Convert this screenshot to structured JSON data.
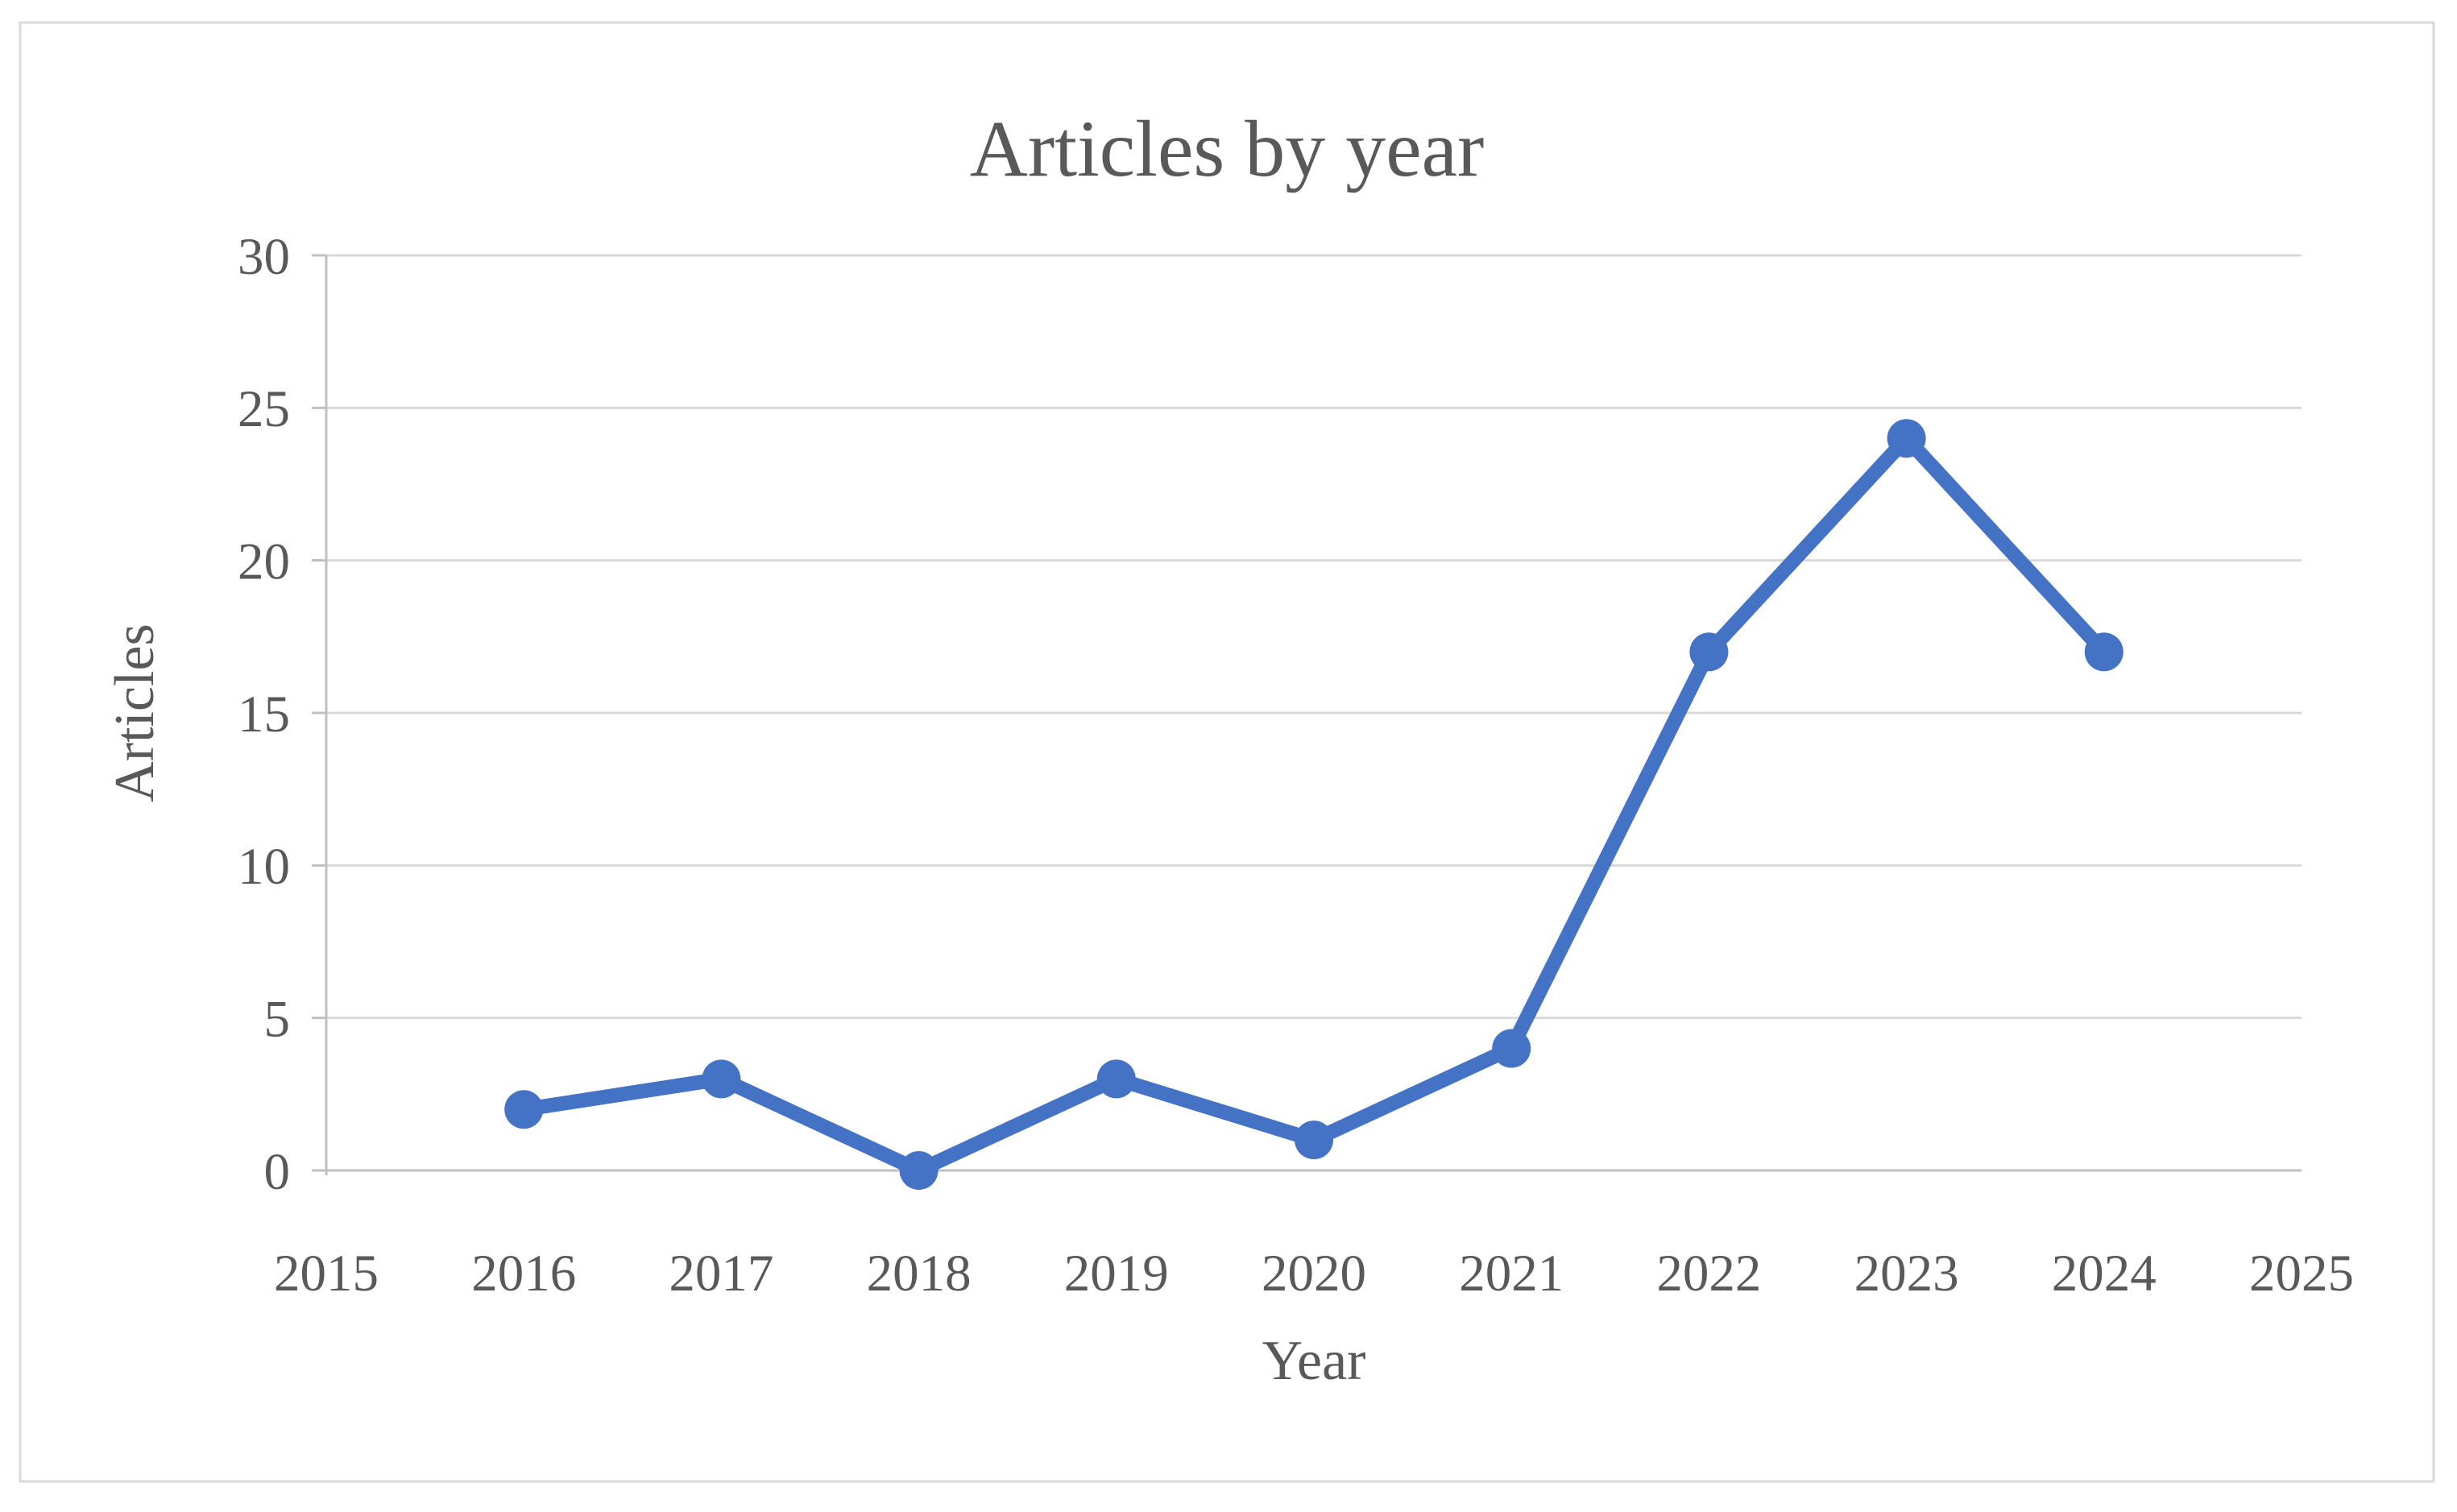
{
  "figure": {
    "border_color": "#d9d9d9",
    "background": "#ffffff"
  },
  "chart_data": {
    "type": "line",
    "title": "Articles by year",
    "xlabel": "Year",
    "ylabel": "Articles",
    "x": [
      2016,
      2017,
      2018,
      2019,
      2020,
      2021,
      2022,
      2023,
      2024
    ],
    "values": [
      2,
      3,
      0,
      3,
      1,
      4,
      17,
      24,
      17
    ],
    "series": [
      {
        "name": "Articles",
        "values": [
          2,
          3,
          0,
          3,
          1,
          4,
          17,
          24,
          17
        ]
      }
    ],
    "x_tick_labels": [
      "2015",
      "2016",
      "2017",
      "2018",
      "2019",
      "2020",
      "2021",
      "2022",
      "2023",
      "2024",
      "2025"
    ],
    "x_tick_values": [
      2015,
      2016,
      2017,
      2018,
      2019,
      2020,
      2021,
      2022,
      2023,
      2024,
      2025
    ],
    "y_tick_labels": [
      "0",
      "5",
      "10",
      "15",
      "20",
      "25",
      "30"
    ],
    "y_tick_values": [
      0,
      5,
      10,
      15,
      20,
      25,
      30
    ],
    "xlim": [
      2015,
      2025
    ],
    "ylim": [
      0,
      30
    ],
    "grid": "horizontal-only",
    "legend_position": "none",
    "colors": {
      "line": "#4472C4",
      "marker": "#4472C4",
      "gridline": "#d9d9d9",
      "axis_line": "#bfbfbf",
      "text": "#595959"
    }
  }
}
